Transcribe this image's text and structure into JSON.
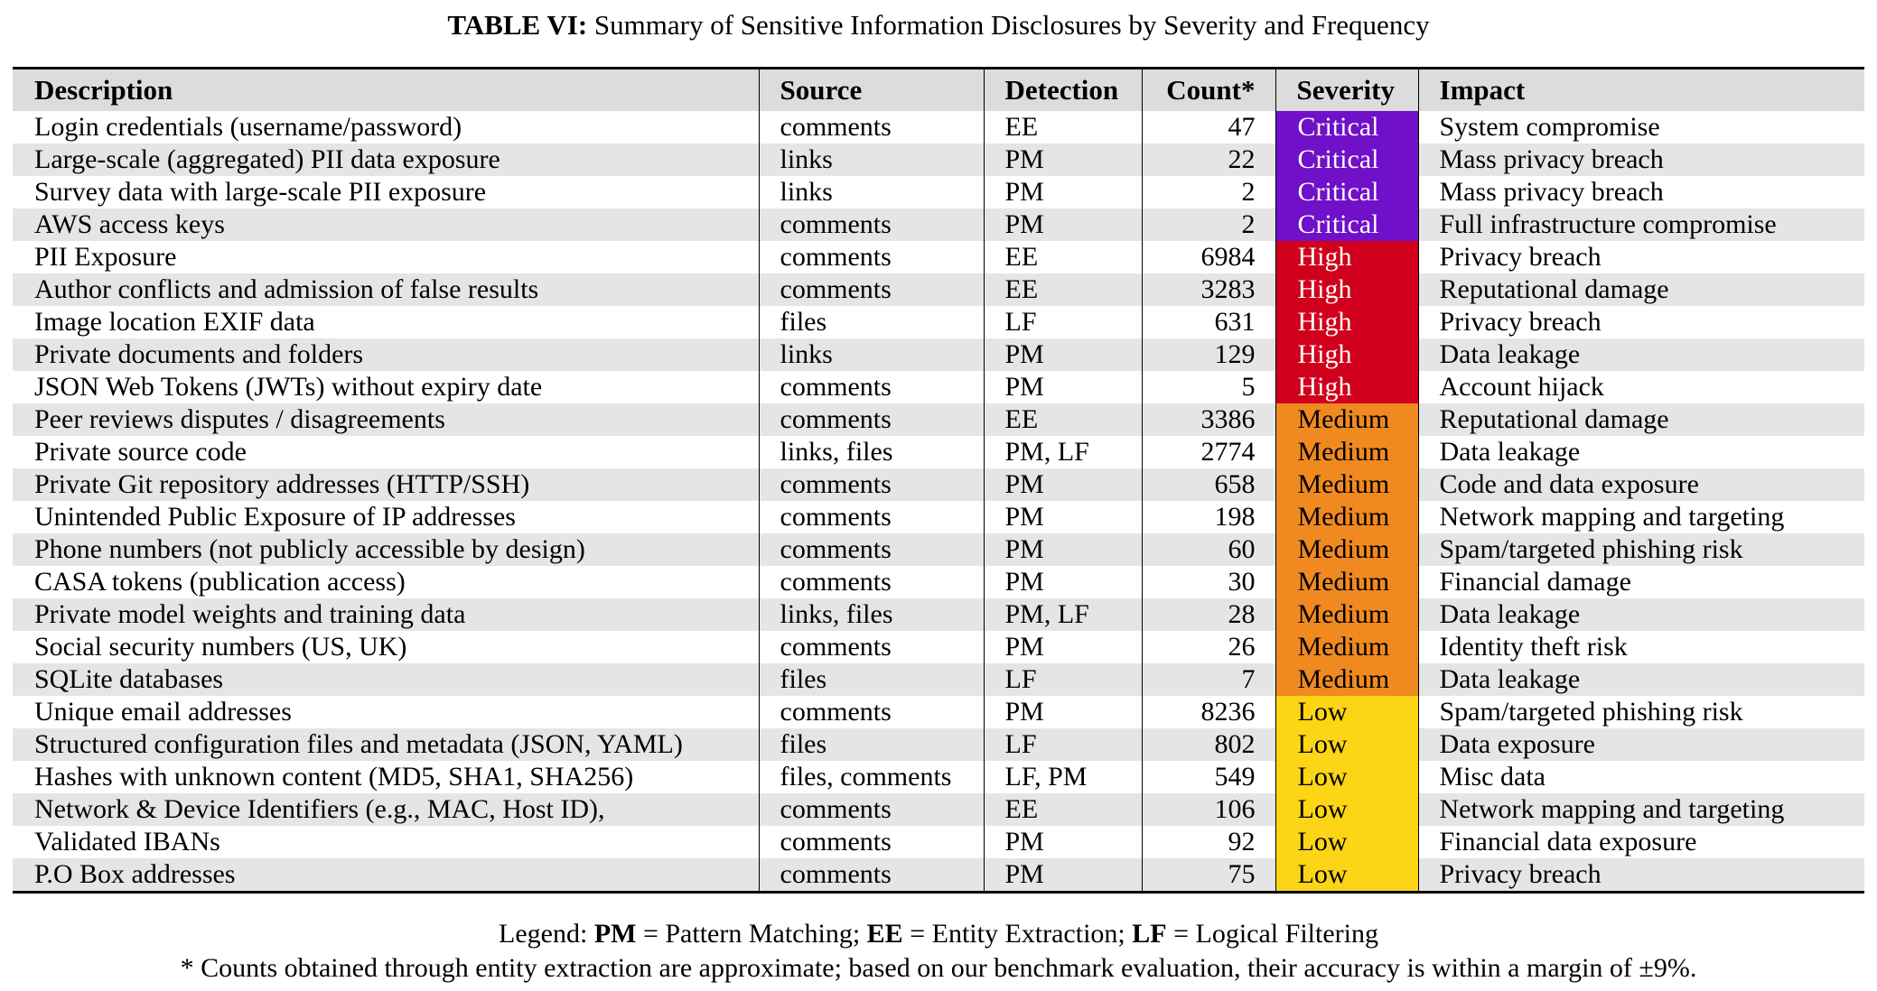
{
  "caption": {
    "label": "TABLE VI:",
    "text": "Summary of Sensitive Information Disclosures by Severity and Frequency"
  },
  "columns": [
    "Description",
    "Source",
    "Detection",
    "Count*",
    "Severity",
    "Impact"
  ],
  "severity_colors": {
    "Critical": "#7010c8",
    "High": "#d0001c",
    "Medium": "#f08a20",
    "Low": "#fcd516"
  },
  "rows": [
    {
      "description": "Login credentials (username/password)",
      "source": "comments",
      "detection": "EE",
      "count": "47",
      "severity": "Critical",
      "impact": "System compromise"
    },
    {
      "description": "Large-scale (aggregated) PII data exposure",
      "source": "links",
      "detection": "PM",
      "count": "22",
      "severity": "Critical",
      "impact": "Mass privacy breach"
    },
    {
      "description": "Survey data with large-scale PII exposure",
      "source": "links",
      "detection": "PM",
      "count": "2",
      "severity": "Critical",
      "impact": "Mass privacy breach"
    },
    {
      "description": "AWS access keys",
      "source": "comments",
      "detection": "PM",
      "count": "2",
      "severity": "Critical",
      "impact": "Full infrastructure compromise"
    },
    {
      "description": "PII Exposure",
      "source": "comments",
      "detection": "EE",
      "count": "6984",
      "severity": "High",
      "impact": "Privacy breach"
    },
    {
      "description": "Author conflicts and admission of false results",
      "source": "comments",
      "detection": "EE",
      "count": "3283",
      "severity": "High",
      "impact": "Reputational damage"
    },
    {
      "description": "Image location EXIF data",
      "source": "files",
      "detection": "LF",
      "count": "631",
      "severity": "High",
      "impact": "Privacy breach"
    },
    {
      "description": "Private documents and folders",
      "source": "links",
      "detection": "PM",
      "count": "129",
      "severity": "High",
      "impact": "Data leakage"
    },
    {
      "description": "JSON Web Tokens (JWTs) without expiry date",
      "source": "comments",
      "detection": "PM",
      "count": "5",
      "severity": "High",
      "impact": "Account hijack"
    },
    {
      "description": "Peer reviews disputes / disagreements",
      "source": "comments",
      "detection": "EE",
      "count": "3386",
      "severity": "Medium",
      "impact": "Reputational damage"
    },
    {
      "description": "Private source code",
      "source": "links, files",
      "detection": "PM, LF",
      "count": "2774",
      "severity": "Medium",
      "impact": "Data leakage"
    },
    {
      "description": "Private Git repository addresses (HTTP/SSH)",
      "source": "comments",
      "detection": "PM",
      "count": "658",
      "severity": "Medium",
      "impact": "Code and data exposure"
    },
    {
      "description": "Unintended Public Exposure of IP addresses",
      "source": "comments",
      "detection": "PM",
      "count": "198",
      "severity": "Medium",
      "impact": "Network mapping and targeting"
    },
    {
      "description": "Phone numbers (not publicly accessible by design)",
      "source": "comments",
      "detection": "PM",
      "count": "60",
      "severity": "Medium",
      "impact": "Spam/targeted phishing risk"
    },
    {
      "description": "CASA tokens (publication access)",
      "source": "comments",
      "detection": "PM",
      "count": "30",
      "severity": "Medium",
      "impact": "Financial damage"
    },
    {
      "description": "Private model weights and training data",
      "source": "links, files",
      "detection": "PM, LF",
      "count": "28",
      "severity": "Medium",
      "impact": "Data leakage"
    },
    {
      "description": "Social security numbers (US, UK)",
      "source": "comments",
      "detection": "PM",
      "count": "26",
      "severity": "Medium",
      "impact": "Identity theft risk"
    },
    {
      "description": "SQLite databases",
      "source": "files",
      "detection": "LF",
      "count": "7",
      "severity": "Medium",
      "impact": "Data leakage"
    },
    {
      "description": "Unique email addresses",
      "source": "comments",
      "detection": "PM",
      "count": "8236",
      "severity": "Low",
      "impact": "Spam/targeted phishing risk"
    },
    {
      "description": "Structured configuration files and metadata (JSON, YAML)",
      "source": "files",
      "detection": "LF",
      "count": "802",
      "severity": "Low",
      "impact": "Data exposure"
    },
    {
      "description": "Hashes with unknown content (MD5, SHA1, SHA256)",
      "source": "files, comments",
      "detection": "LF, PM",
      "count": "549",
      "severity": "Low",
      "impact": "Misc data"
    },
    {
      "description": "Network & Device Identifiers (e.g., MAC, Host ID),",
      "source": "comments",
      "detection": "EE",
      "count": "106",
      "severity": "Low",
      "impact": "Network mapping and targeting"
    },
    {
      "description": "Validated IBANs",
      "source": "comments",
      "detection": "PM",
      "count": "92",
      "severity": "Low",
      "impact": "Financial data exposure"
    },
    {
      "description": "P.O Box addresses",
      "source": "comments",
      "detection": "PM",
      "count": "75",
      "severity": "Low",
      "impact": "Privacy breach"
    }
  ],
  "legend": {
    "prefix": "Legend: ",
    "items": [
      {
        "abbr": "PM",
        "text": " = Pattern Matching; "
      },
      {
        "abbr": "EE",
        "text": " = Entity Extraction; "
      },
      {
        "abbr": "LF",
        "text": " = Logical Filtering"
      }
    ]
  },
  "footnote": "* Counts obtained through entity extraction are approximate; based on our benchmark evaluation, their accuracy is within a margin of ±9%."
}
